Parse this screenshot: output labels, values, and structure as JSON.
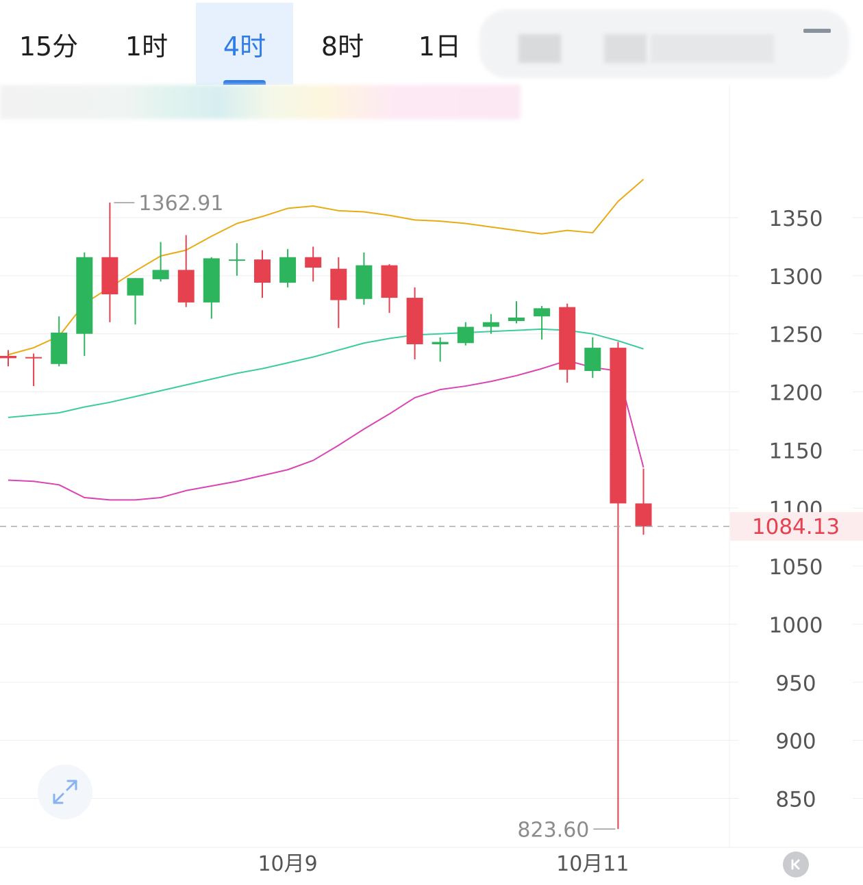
{
  "timeframe_tabs": [
    {
      "label": "15分",
      "active": false
    },
    {
      "label": "1时",
      "active": false
    },
    {
      "label": "4时",
      "active": true
    },
    {
      "label": "8时",
      "active": false
    },
    {
      "label": "1日",
      "active": false
    }
  ],
  "colors": {
    "up": "#2db55d",
    "down": "#e5414f",
    "upper_band": "#e8ab14",
    "middle_band": "#3ccba0",
    "lower_band": "#d944b5",
    "accent": "#2f7be8"
  },
  "icons": {
    "expand": "expand-diagonal-icon",
    "back": "back-to-latest-icon",
    "menu": "menu-icon"
  },
  "chart_data": {
    "type": "candlestick",
    "ylim": [
      813,
      1390
    ],
    "yticks": [
      1350,
      1300,
      1250,
      1200,
      1150,
      1100,
      1050,
      1000,
      950,
      900,
      850
    ],
    "x_labels": [
      {
        "index": 11,
        "label": "10月9"
      },
      {
        "index": 23,
        "label": "10月11"
      }
    ],
    "high_marker": {
      "index": 4,
      "value": 1362.91,
      "label": "1362.91"
    },
    "low_marker": {
      "index": 24,
      "value": 823.6,
      "label": "823.60"
    },
    "last_price": {
      "value": 1084.13,
      "label": "1084.13"
    },
    "candles": [
      {
        "o": 1231,
        "h": 1236,
        "l": 1222,
        "c": 1229
      },
      {
        "o": 1230,
        "h": 1233,
        "l": 1205,
        "c": 1229
      },
      {
        "o": 1224,
        "h": 1265,
        "l": 1222,
        "c": 1251
      },
      {
        "o": 1250,
        "h": 1320,
        "l": 1231,
        "c": 1316
      },
      {
        "o": 1316,
        "h": 1363,
        "l": 1260,
        "c": 1284
      },
      {
        "o": 1283,
        "h": 1298,
        "l": 1258,
        "c": 1298
      },
      {
        "o": 1297,
        "h": 1329,
        "l": 1295,
        "c": 1305
      },
      {
        "o": 1305,
        "h": 1335,
        "l": 1273,
        "c": 1277
      },
      {
        "o": 1277,
        "h": 1316,
        "l": 1263,
        "c": 1315
      },
      {
        "o": 1313,
        "h": 1328,
        "l": 1300,
        "c": 1314
      },
      {
        "o": 1314,
        "h": 1322,
        "l": 1281,
        "c": 1294
      },
      {
        "o": 1294,
        "h": 1323,
        "l": 1290,
        "c": 1316
      },
      {
        "o": 1316,
        "h": 1325,
        "l": 1295,
        "c": 1307
      },
      {
        "o": 1306,
        "h": 1316,
        "l": 1255,
        "c": 1279
      },
      {
        "o": 1280,
        "h": 1320,
        "l": 1275,
        "c": 1309
      },
      {
        "o": 1309,
        "h": 1310,
        "l": 1268,
        "c": 1281
      },
      {
        "o": 1281,
        "h": 1290,
        "l": 1228,
        "c": 1241
      },
      {
        "o": 1241,
        "h": 1247,
        "l": 1226,
        "c": 1243
      },
      {
        "o": 1242,
        "h": 1260,
        "l": 1240,
        "c": 1256
      },
      {
        "o": 1256,
        "h": 1267,
        "l": 1250,
        "c": 1260
      },
      {
        "o": 1261,
        "h": 1278,
        "l": 1259,
        "c": 1264
      },
      {
        "o": 1265,
        "h": 1274,
        "l": 1245,
        "c": 1272
      },
      {
        "o": 1273,
        "h": 1276,
        "l": 1208,
        "c": 1219
      },
      {
        "o": 1218,
        "h": 1247,
        "l": 1212,
        "c": 1238
      },
      {
        "o": 1238,
        "h": 1243,
        "l": 823.6,
        "c": 1104
      },
      {
        "o": 1104,
        "h": 1134,
        "l": 1077,
        "c": 1084.13
      }
    ],
    "series": [
      {
        "name": "upper",
        "values": [
          1232,
          1238,
          1248,
          1276,
          1290,
          1304,
          1317,
          1322,
          1334,
          1345,
          1351,
          1358,
          1360,
          1356,
          1355,
          1352,
          1348,
          1347,
          1345,
          1342,
          1339,
          1336,
          1339,
          1337,
          1364,
          1383
        ]
      },
      {
        "name": "middle",
        "values": [
          1178,
          1180,
          1182,
          1187,
          1191,
          1196,
          1201,
          1206,
          1211,
          1216,
          1220,
          1225,
          1230,
          1236,
          1242,
          1246,
          1249,
          1250,
          1251,
          1252,
          1253,
          1254,
          1253,
          1250,
          1244,
          1237
        ]
      },
      {
        "name": "lower",
        "values": [
          1124,
          1123,
          1120,
          1109,
          1107,
          1107,
          1109,
          1115,
          1119,
          1123,
          1128,
          1133,
          1141,
          1154,
          1168,
          1181,
          1195,
          1202,
          1205,
          1209,
          1214,
          1220,
          1227,
          1221,
          1218,
          1135
        ]
      }
    ]
  }
}
